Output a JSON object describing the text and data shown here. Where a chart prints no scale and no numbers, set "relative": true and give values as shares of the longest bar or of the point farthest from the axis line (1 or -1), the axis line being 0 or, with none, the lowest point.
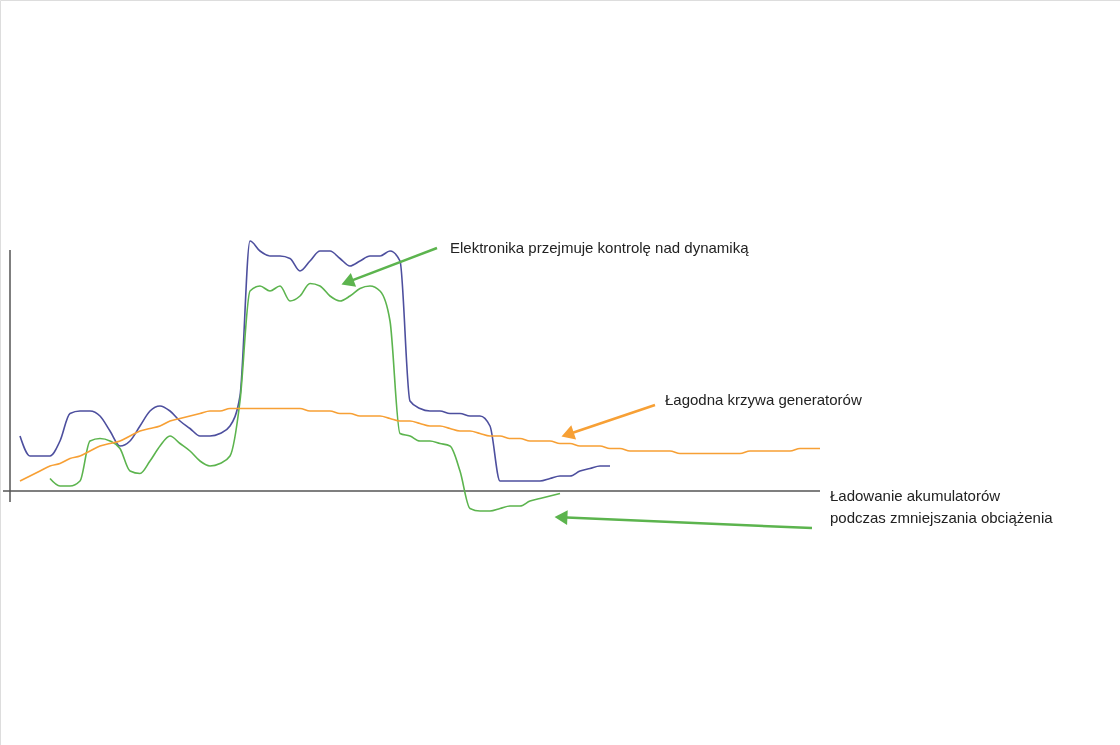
{
  "chart_data": {
    "type": "line",
    "relative": true,
    "line_style": "solid",
    "marker": "none",
    "categories": [
      null,
      null,
      null,
      null,
      null,
      null,
      null,
      null,
      null,
      null,
      null,
      null,
      null,
      null,
      null,
      null,
      null,
      null,
      null,
      null,
      null,
      null,
      null,
      null,
      null,
      null,
      null,
      null,
      null,
      null,
      null,
      null,
      null,
      null,
      null,
      null,
      null,
      null,
      null,
      null,
      null,
      null,
      null,
      null,
      null,
      null,
      null,
      null,
      null,
      null,
      null,
      null,
      null,
      null,
      null,
      null,
      null,
      null,
      null,
      null,
      null,
      null,
      null,
      null,
      null,
      null,
      null,
      null,
      null,
      null,
      null,
      null,
      null,
      null,
      null,
      null,
      null,
      null,
      null,
      null,
      null
    ],
    "series": [
      {
        "color": "#4d4f9e",
        "values": [
          0.22,
          0.14,
          0.14,
          0.14,
          0.2,
          0.31,
          0.32,
          0.32,
          0.3,
          0.24,
          0.18,
          0.2,
          0.26,
          0.32,
          0.34,
          0.32,
          0.28,
          0.25,
          0.22,
          0.22,
          0.23,
          0.26,
          0.38,
          1.0,
          0.96,
          0.94,
          0.94,
          0.93,
          0.88,
          0.92,
          0.96,
          0.96,
          0.93,
          0.9,
          0.92,
          0.94,
          0.94,
          0.96,
          0.92,
          0.36,
          0.33,
          0.32,
          0.32,
          0.31,
          0.31,
          0.3,
          0.3,
          0.26,
          0.04,
          0.04,
          0.04,
          0.04,
          0.04,
          0.05,
          0.06,
          0.06,
          0.08,
          0.09,
          0.1,
          0.1,
          null,
          null,
          null,
          null,
          null,
          null,
          null,
          null,
          null,
          null,
          null,
          null,
          null,
          null,
          null,
          null,
          null,
          null,
          null,
          null,
          null
        ]
      },
      {
        "color": "#5cb44e",
        "values": [
          null,
          null,
          null,
          0.05,
          0.02,
          0.02,
          0.04,
          0.2,
          0.21,
          0.2,
          0.17,
          0.08,
          0.07,
          0.12,
          0.18,
          0.22,
          0.19,
          0.16,
          0.12,
          0.1,
          0.11,
          0.14,
          0.36,
          0.8,
          0.82,
          0.8,
          0.82,
          0.76,
          0.78,
          0.83,
          0.82,
          0.78,
          0.76,
          0.78,
          0.81,
          0.82,
          0.8,
          0.68,
          0.23,
          0.22,
          0.2,
          0.2,
          0.19,
          0.18,
          0.08,
          -0.07,
          -0.08,
          -0.08,
          -0.07,
          -0.06,
          -0.06,
          -0.04,
          -0.03,
          -0.02,
          -0.01,
          null,
          null,
          null,
          null,
          null,
          null,
          null,
          null,
          null,
          null,
          null,
          null,
          null,
          null,
          null,
          null,
          null,
          null,
          null,
          null,
          null,
          null,
          null,
          null,
          null,
          null
        ]
      },
      {
        "color": "#f7a035",
        "values": [
          0.04,
          0.06,
          0.08,
          0.1,
          0.11,
          0.13,
          0.14,
          0.16,
          0.18,
          0.19,
          0.2,
          0.22,
          0.24,
          0.25,
          0.26,
          0.28,
          0.29,
          0.3,
          0.31,
          0.32,
          0.32,
          0.33,
          0.33,
          0.33,
          0.33,
          0.33,
          0.33,
          0.33,
          0.33,
          0.32,
          0.32,
          0.32,
          0.31,
          0.31,
          0.3,
          0.3,
          0.3,
          0.29,
          0.28,
          0.28,
          0.27,
          0.26,
          0.26,
          0.25,
          0.24,
          0.24,
          0.23,
          0.22,
          0.22,
          0.21,
          0.21,
          0.2,
          0.2,
          0.2,
          0.19,
          0.19,
          0.18,
          0.18,
          0.18,
          0.17,
          0.17,
          0.16,
          0.16,
          0.16,
          0.16,
          0.16,
          0.15,
          0.15,
          0.15,
          0.15,
          0.15,
          0.15,
          0.15,
          0.16,
          0.16,
          0.16,
          0.16,
          0.16,
          0.17,
          0.17,
          0.17
        ]
      }
    ],
    "annotations": [
      "Elektronika przejmuje kontrolę nad dynamiką",
      "Łagodna krzywa generatorów",
      "Ładowanie akumulatorów\npodczas zmniejszania obciążenia"
    ]
  }
}
